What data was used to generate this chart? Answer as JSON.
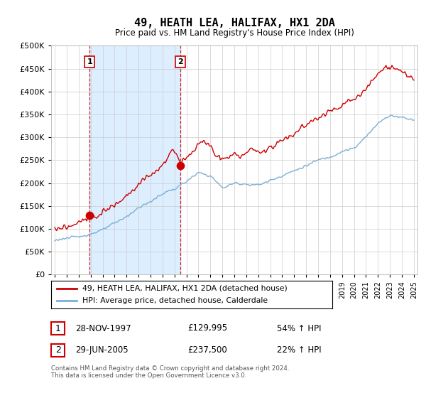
{
  "title": "49, HEATH LEA, HALIFAX, HX1 2DA",
  "subtitle": "Price paid vs. HM Land Registry's House Price Index (HPI)",
  "legend_line1": "49, HEATH LEA, HALIFAX, HX1 2DA (detached house)",
  "legend_line2": "HPI: Average price, detached house, Calderdale",
  "sale1_label": "1",
  "sale1_date": "28-NOV-1997",
  "sale1_price": "£129,995",
  "sale1_hpi": "54% ↑ HPI",
  "sale1_x": 1997.91,
  "sale1_y": 129995,
  "sale2_label": "2",
  "sale2_date": "29-JUN-2005",
  "sale2_price": "£237,500",
  "sale2_hpi": "22% ↑ HPI",
  "sale2_x": 2005.49,
  "sale2_y": 237500,
  "ylim": [
    0,
    500000
  ],
  "yticks": [
    0,
    50000,
    100000,
    150000,
    200000,
    250000,
    300000,
    350000,
    400000,
    450000,
    500000
  ],
  "xlim_min": 1994.7,
  "xlim_max": 2025.3,
  "red_color": "#cc0000",
  "blue_color": "#7bafd4",
  "shade_color": "#ddeeff",
  "background_color": "#ffffff",
  "grid_color": "#cccccc",
  "footer": "Contains HM Land Registry data © Crown copyright and database right 2024.\nThis data is licensed under the Open Government Licence v3.0."
}
